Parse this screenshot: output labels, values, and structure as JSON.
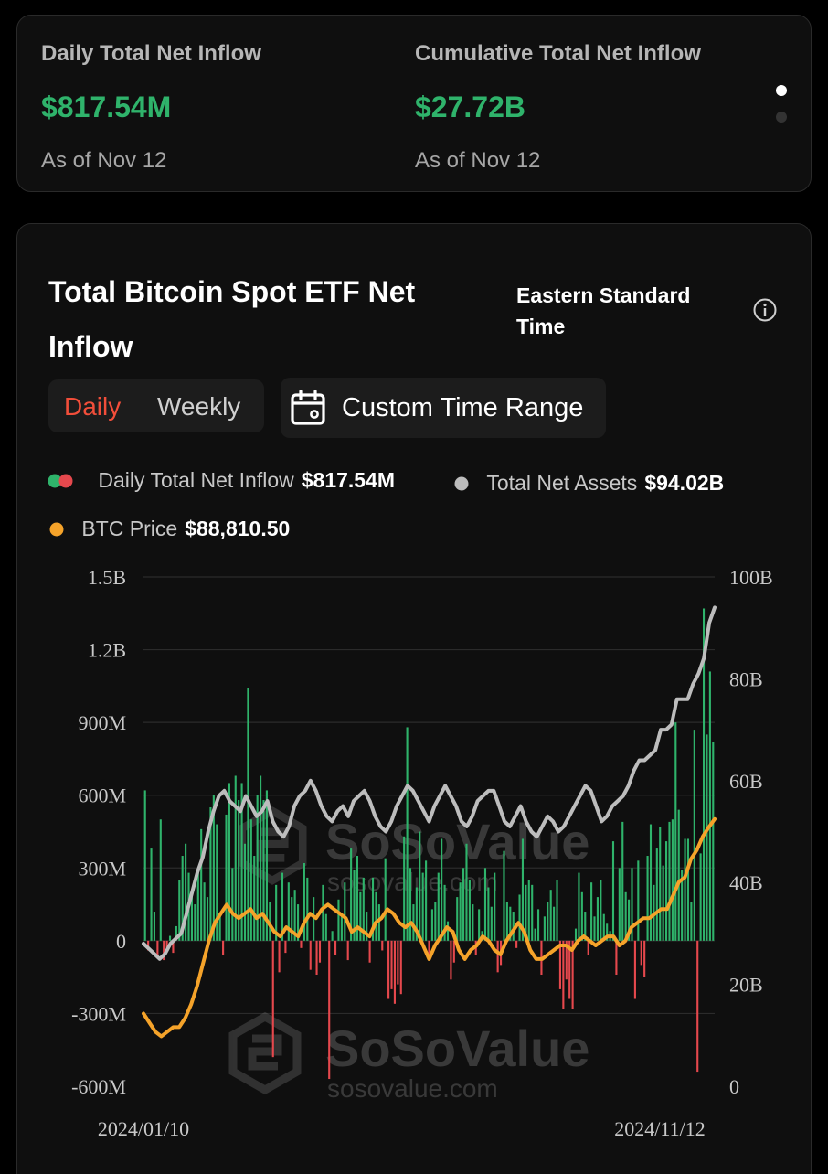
{
  "stats": [
    {
      "label": "Daily Total Net Inflow",
      "value": "$817.54M",
      "as_of": "As of Nov 12"
    },
    {
      "label": "Cumulative Total Net Inflow",
      "value": "$27.72B",
      "as_of": "As of Nov 12"
    }
  ],
  "chart_card": {
    "title": "Total Bitcoin Spot ETF Net Inflow",
    "timezone": "Eastern Standard Time",
    "info_icon": "info-circle-icon",
    "period_tabs": [
      {
        "label": "Daily",
        "active": true
      },
      {
        "label": "Weekly",
        "active": false
      }
    ],
    "custom_range_label": "Custom Time Range",
    "calendar_icon": "calendar-icon"
  },
  "legend": [
    {
      "label": "Daily Total Net Inflow",
      "value": "$817.54M"
    },
    {
      "label": "Total Net Assets",
      "value": "$94.02B"
    },
    {
      "label": "BTC Price",
      "value": "$88,810.50"
    }
  ],
  "colors": {
    "positive": "#2fb36b",
    "negative": "#e5484d",
    "assets_line": "#bdbdbd",
    "btc_line": "#f5a32a",
    "active_tab": "#f24e3a",
    "background": "#0f0f0f"
  },
  "watermark": {
    "brand": "SoSoValue",
    "url": "sosovalue.com"
  },
  "chart_data": {
    "type": "bar",
    "title": "",
    "x_tick_labels": [
      "2024/01/10",
      "2024/11/12"
    ],
    "left_axis": {
      "ticks": [
        "1.5B",
        "1.2B",
        "900M",
        "600M",
        "300M",
        "0",
        "-300M",
        "-600M"
      ],
      "range": [
        -600000000,
        1500000000
      ]
    },
    "right_axis": {
      "ticks": [
        "100B",
        "80B",
        "60B",
        "40B",
        "20B",
        "0"
      ],
      "range": [
        0,
        100000000000
      ]
    },
    "grid": true,
    "series": [
      {
        "name": "Daily Total Net Inflow",
        "type": "bar",
        "unit": "M USD",
        "values": [
          620,
          -40,
          380,
          120,
          -60,
          500,
          -80,
          -30,
          20,
          -50,
          60,
          250,
          350,
          400,
          280,
          200,
          150,
          300,
          460,
          240,
          180,
          550,
          600,
          480,
          100,
          -60,
          520,
          650,
          300,
          680,
          580,
          650,
          400,
          1040,
          500,
          350,
          600,
          680,
          580,
          620,
          160,
          -480,
          230,
          -130,
          280,
          -50,
          240,
          180,
          210,
          150,
          -30,
          320,
          260,
          -120,
          180,
          -140,
          -90,
          230,
          110,
          -570,
          40,
          -60,
          170,
          100,
          240,
          -80,
          380,
          290,
          350,
          200,
          260,
          120,
          -90,
          260,
          200,
          150,
          -40,
          340,
          -240,
          -200,
          -260,
          -180,
          -220,
          430,
          880,
          300,
          150,
          220,
          450,
          280,
          330,
          -80,
          130,
          160,
          280,
          420,
          230,
          80,
          -160,
          -90,
          180,
          240,
          300,
          400,
          250,
          150,
          -60,
          130,
          40,
          300,
          220,
          140,
          280,
          -130,
          -100,
          370,
          160,
          140,
          120,
          -30,
          190,
          420,
          230,
          250,
          230,
          50,
          130,
          -140,
          100,
          160,
          210,
          140,
          250,
          -200,
          -280,
          -160,
          -240,
          -280,
          50,
          280,
          200,
          120,
          -60,
          240,
          100,
          180,
          250,
          110,
          70,
          40,
          410,
          -140,
          300,
          490,
          200,
          170,
          300,
          -240,
          330,
          -100,
          -150,
          350,
          480,
          230,
          380,
          470,
          310,
          410,
          490,
          500,
          900,
          540,
          290,
          420,
          420,
          160,
          870,
          -540,
          360,
          1370,
          850,
          1110,
          820
        ],
        "approx_days": 209
      },
      {
        "name": "Total Net Assets",
        "type": "line",
        "unit": "B USD",
        "values": [
          28,
          27,
          26,
          25,
          26,
          28,
          29,
          30,
          34,
          38,
          42,
          45,
          50,
          54,
          57,
          58,
          56,
          55,
          54,
          57,
          55,
          53,
          54,
          56,
          52,
          50,
          49,
          51,
          55,
          57,
          58,
          60,
          58,
          55,
          53,
          52,
          54,
          55,
          53,
          56,
          57,
          58,
          56,
          53,
          51,
          50,
          52,
          55,
          57,
          59,
          58,
          56,
          54,
          52,
          55,
          57,
          59,
          57,
          55,
          52,
          51,
          53,
          56,
          57,
          58,
          58,
          55,
          52,
          51,
          53,
          55,
          52,
          50,
          49,
          51,
          53,
          52,
          50,
          51,
          53,
          55,
          57,
          59,
          58,
          55,
          52,
          53,
          55,
          56,
          57,
          59,
          62,
          64,
          64,
          65,
          66,
          70,
          70,
          71,
          76,
          76,
          76,
          79,
          81,
          84,
          91,
          94
        ]
      },
      {
        "name": "BTC Price",
        "type": "line",
        "unit": "USD",
        "values": [
          46000,
          44000,
          42000,
          41000,
          42000,
          43000,
          43000,
          45000,
          48000,
          52000,
          57000,
          62000,
          66000,
          68000,
          70000,
          68000,
          67000,
          68000,
          69000,
          67000,
          68000,
          66000,
          64000,
          63000,
          65000,
          64000,
          63000,
          66000,
          68000,
          67000,
          69000,
          70000,
          69000,
          68000,
          67000,
          64000,
          65000,
          64000,
          63000,
          66000,
          67000,
          69000,
          68000,
          66000,
          65000,
          66000,
          64000,
          61000,
          58000,
          61000,
          63000,
          65000,
          64000,
          60000,
          58000,
          60000,
          61000,
          63000,
          62000,
          60000,
          59000,
          62000,
          64000,
          66000,
          64000,
          60000,
          58000,
          58000,
          59000,
          60000,
          61000,
          61000,
          60000,
          62000,
          63000,
          62000,
          61000,
          62000,
          63000,
          63000,
          61000,
          62000,
          65000,
          66000,
          67000,
          67000,
          68000,
          69000,
          69000,
          72000,
          75000,
          76000,
          80000,
          82000,
          85000,
          87000,
          88810
        ]
      }
    ]
  }
}
